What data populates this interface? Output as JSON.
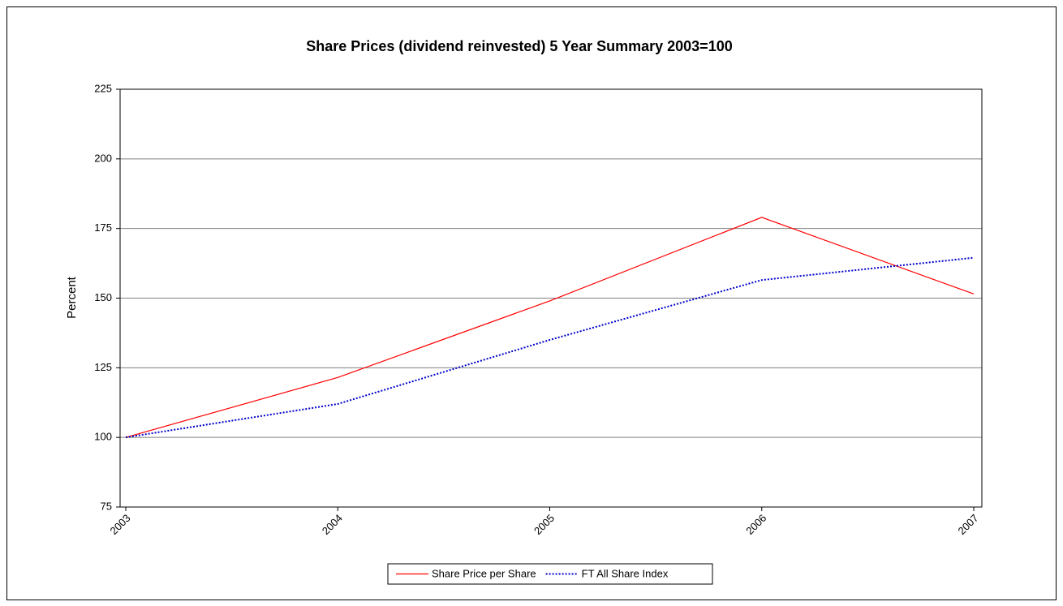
{
  "chart_data": {
    "type": "line",
    "title": "Share Prices (dividend reinvested) 5 Year Summary 2003=100",
    "y_label": "Percent",
    "categories": [
      "2003",
      "2004",
      "2005",
      "2006",
      "2007"
    ],
    "series": [
      {
        "name": "Share Price per Share",
        "color": "#ff0000",
        "values": [
          100,
          121.5,
          149,
          179,
          151.5
        ]
      },
      {
        "name": "FT All Share Index",
        "color": "#0000cc",
        "dashed": true,
        "values": [
          100,
          112,
          135,
          156.5,
          164.5
        ]
      }
    ],
    "ylim": [
      75,
      225
    ],
    "yticks": [
      75,
      100,
      125,
      150,
      175,
      200,
      225
    ],
    "grid": true,
    "legend": "bottom"
  }
}
